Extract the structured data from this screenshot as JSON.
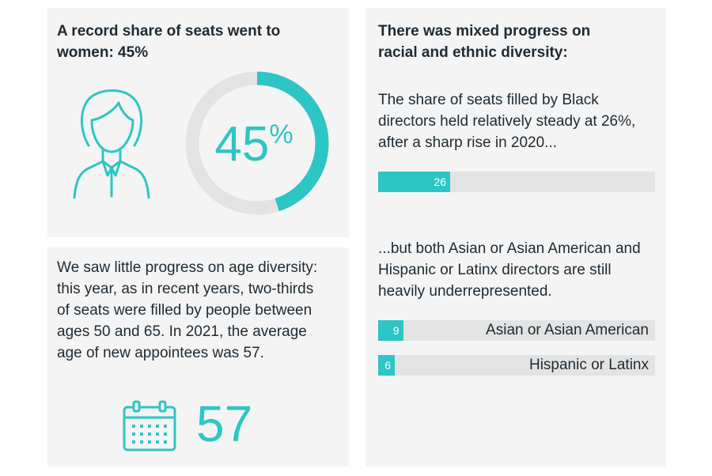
{
  "women_panel": {
    "heading": "A record share of seats went to women: 45%",
    "icon": "woman-icon"
  },
  "age_panel": {
    "text": "We saw little progress on age diversity: this year, as in recent years, two-thirds of seats were filled by people between ages 50 and 65. In 2021, the average age of new appointees was 57.",
    "icon": "calendar-icon",
    "average_age": "57"
  },
  "diversity_panel": {
    "heading": "There was mixed progress on racial and ethnic diversity:",
    "black_text": "The share of seats filled by Black directors held relatively steady at 26%, after a sharp rise in 2020...",
    "underrep_text": "...but both Asian or Asian American and Hispanic or Latinx directors are still heavily underrepresented."
  },
  "colors": {
    "accent": "#2ec5c5",
    "track": "#e3e3e3",
    "panel": "#f4f4f4",
    "text": "#1e2a33"
  },
  "chart_data": [
    {
      "type": "pie",
      "variant": "donut",
      "values": [
        45,
        55
      ],
      "center_label": {
        "number": "45",
        "unit": "%"
      }
    },
    {
      "type": "bar",
      "orientation": "horizontal",
      "xlim": [
        0,
        100
      ],
      "bars": [
        {
          "label": "",
          "value": 26,
          "value_label": "26"
        },
        {
          "label": "Asian or Asian American",
          "value": 9,
          "value_label": "9"
        },
        {
          "label": "Hispanic or Latinx",
          "value": 6,
          "value_label": "6"
        }
      ]
    }
  ]
}
